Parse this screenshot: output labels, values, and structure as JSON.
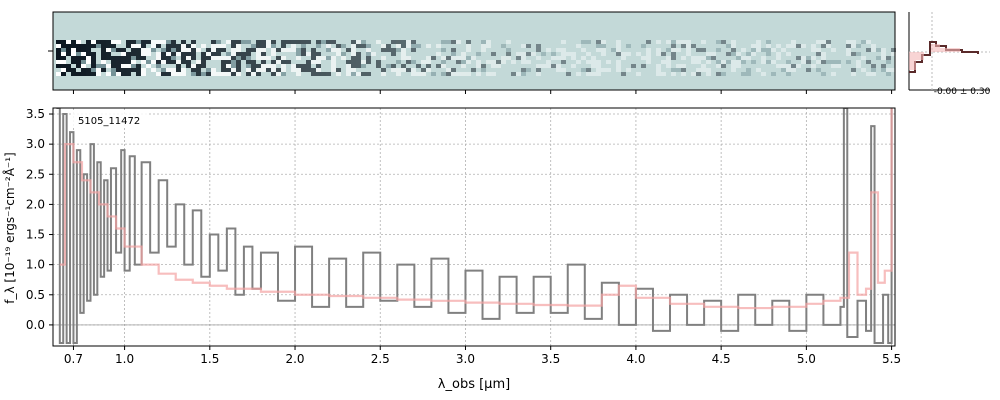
{
  "chart_data": [
    {
      "type": "heatmap",
      "description_panel": "2D spectrum",
      "colors": {
        "background": "#c3d9d8",
        "dark": "#0b1620",
        "light": "#ffffff"
      }
    },
    {
      "type": "line",
      "label": "5105_11472",
      "xlabel": "λ_obs [μm]",
      "ylabel": "f_λ [10⁻¹⁹ ergs⁻¹cm⁻²Å⁻¹]",
      "xlim": [
        0.58,
        5.52
      ],
      "ylim": [
        -0.35,
        3.6
      ],
      "xtick_labels": [
        "0.7",
        "1.0",
        "1.5",
        "2.0",
        "2.5",
        "3.0",
        "3.5",
        "4.0",
        "4.5",
        "5.0",
        "5.5"
      ],
      "ytick_labels": [
        "0.0",
        "0.5",
        "1.0",
        "1.5",
        "2.0",
        "2.5",
        "3.0",
        "3.5"
      ],
      "grid": true,
      "series": [
        {
          "color": "#808080",
          "points": [
            [
              0.6,
              3.6
            ],
            [
              0.62,
              -0.3
            ],
            [
              0.64,
              3.5
            ],
            [
              0.66,
              -0.3
            ],
            [
              0.68,
              3.2
            ],
            [
              0.7,
              -0.3
            ],
            [
              0.72,
              2.9
            ],
            [
              0.74,
              0.2
            ],
            [
              0.76,
              2.5
            ],
            [
              0.78,
              0.4
            ],
            [
              0.8,
              3.0
            ],
            [
              0.82,
              0.5
            ],
            [
              0.84,
              2.7
            ],
            [
              0.86,
              0.8
            ],
            [
              0.88,
              2.4
            ],
            [
              0.9,
              0.9
            ],
            [
              0.92,
              2.6
            ],
            [
              0.95,
              1.2
            ],
            [
              0.98,
              2.9
            ],
            [
              1.0,
              0.9
            ],
            [
              1.03,
              2.8
            ],
            [
              1.06,
              1.0
            ],
            [
              1.1,
              2.7
            ],
            [
              1.15,
              1.2
            ],
            [
              1.2,
              2.4
            ],
            [
              1.25,
              1.3
            ],
            [
              1.3,
              2.0
            ],
            [
              1.35,
              1.0
            ],
            [
              1.4,
              1.9
            ],
            [
              1.45,
              0.8
            ],
            [
              1.5,
              1.5
            ],
            [
              1.55,
              0.9
            ],
            [
              1.6,
              1.6
            ],
            [
              1.65,
              0.5
            ],
            [
              1.7,
              1.3
            ],
            [
              1.75,
              0.6
            ],
            [
              1.8,
              1.2
            ],
            [
              1.9,
              0.4
            ],
            [
              2.0,
              1.3
            ],
            [
              2.1,
              0.3
            ],
            [
              2.2,
              1.1
            ],
            [
              2.3,
              0.3
            ],
            [
              2.4,
              1.2
            ],
            [
              2.5,
              0.4
            ],
            [
              2.6,
              1.0
            ],
            [
              2.7,
              0.3
            ],
            [
              2.8,
              1.1
            ],
            [
              2.9,
              0.2
            ],
            [
              3.0,
              0.9
            ],
            [
              3.1,
              0.1
            ],
            [
              3.2,
              0.8
            ],
            [
              3.3,
              0.2
            ],
            [
              3.4,
              0.8
            ],
            [
              3.5,
              0.2
            ],
            [
              3.6,
              1.0
            ],
            [
              3.7,
              0.1
            ],
            [
              3.8,
              0.7
            ],
            [
              3.9,
              0.0
            ],
            [
              4.0,
              0.6
            ],
            [
              4.1,
              -0.1
            ],
            [
              4.2,
              0.5
            ],
            [
              4.3,
              0.0
            ],
            [
              4.4,
              0.4
            ],
            [
              4.5,
              -0.1
            ],
            [
              4.6,
              0.5
            ],
            [
              4.7,
              0.0
            ],
            [
              4.8,
              0.4
            ],
            [
              4.9,
              -0.1
            ],
            [
              5.0,
              0.5
            ],
            [
              5.1,
              0.0
            ],
            [
              5.2,
              0.3
            ],
            [
              5.22,
              3.6
            ],
            [
              5.24,
              -0.2
            ],
            [
              5.3,
              0.4
            ],
            [
              5.35,
              -0.1
            ],
            [
              5.38,
              3.3
            ],
            [
              5.4,
              -0.3
            ],
            [
              5.45,
              0.5
            ],
            [
              5.48,
              -0.3
            ],
            [
              5.5,
              3.6
            ]
          ]
        },
        {
          "color": "#f4a3a3",
          "points": [
            [
              0.62,
              1.0
            ],
            [
              0.65,
              3.0
            ],
            [
              0.7,
              2.7
            ],
            [
              0.75,
              2.4
            ],
            [
              0.8,
              2.2
            ],
            [
              0.85,
              2.0
            ],
            [
              0.9,
              1.8
            ],
            [
              0.95,
              1.6
            ],
            [
              1.0,
              1.3
            ],
            [
              1.1,
              1.0
            ],
            [
              1.2,
              0.85
            ],
            [
              1.3,
              0.75
            ],
            [
              1.4,
              0.7
            ],
            [
              1.5,
              0.65
            ],
            [
              1.6,
              0.6
            ],
            [
              1.8,
              0.55
            ],
            [
              2.0,
              0.5
            ],
            [
              2.2,
              0.48
            ],
            [
              2.4,
              0.45
            ],
            [
              2.6,
              0.42
            ],
            [
              2.8,
              0.4
            ],
            [
              3.0,
              0.37
            ],
            [
              3.2,
              0.35
            ],
            [
              3.4,
              0.33
            ],
            [
              3.6,
              0.32
            ],
            [
              3.8,
              0.5
            ],
            [
              3.9,
              0.65
            ],
            [
              4.0,
              0.45
            ],
            [
              4.2,
              0.35
            ],
            [
              4.4,
              0.3
            ],
            [
              4.6,
              0.28
            ],
            [
              4.8,
              0.3
            ],
            [
              5.0,
              0.35
            ],
            [
              5.1,
              0.4
            ],
            [
              5.2,
              0.45
            ],
            [
              5.25,
              1.2
            ],
            [
              5.3,
              0.5
            ],
            [
              5.35,
              0.6
            ],
            [
              5.38,
              2.2
            ],
            [
              5.42,
              0.7
            ],
            [
              5.46,
              0.9
            ],
            [
              5.5,
              3.6
            ]
          ]
        }
      ]
    },
    {
      "type": "histogram",
      "annotation": "-0.00 ± 0.30"
    }
  ]
}
